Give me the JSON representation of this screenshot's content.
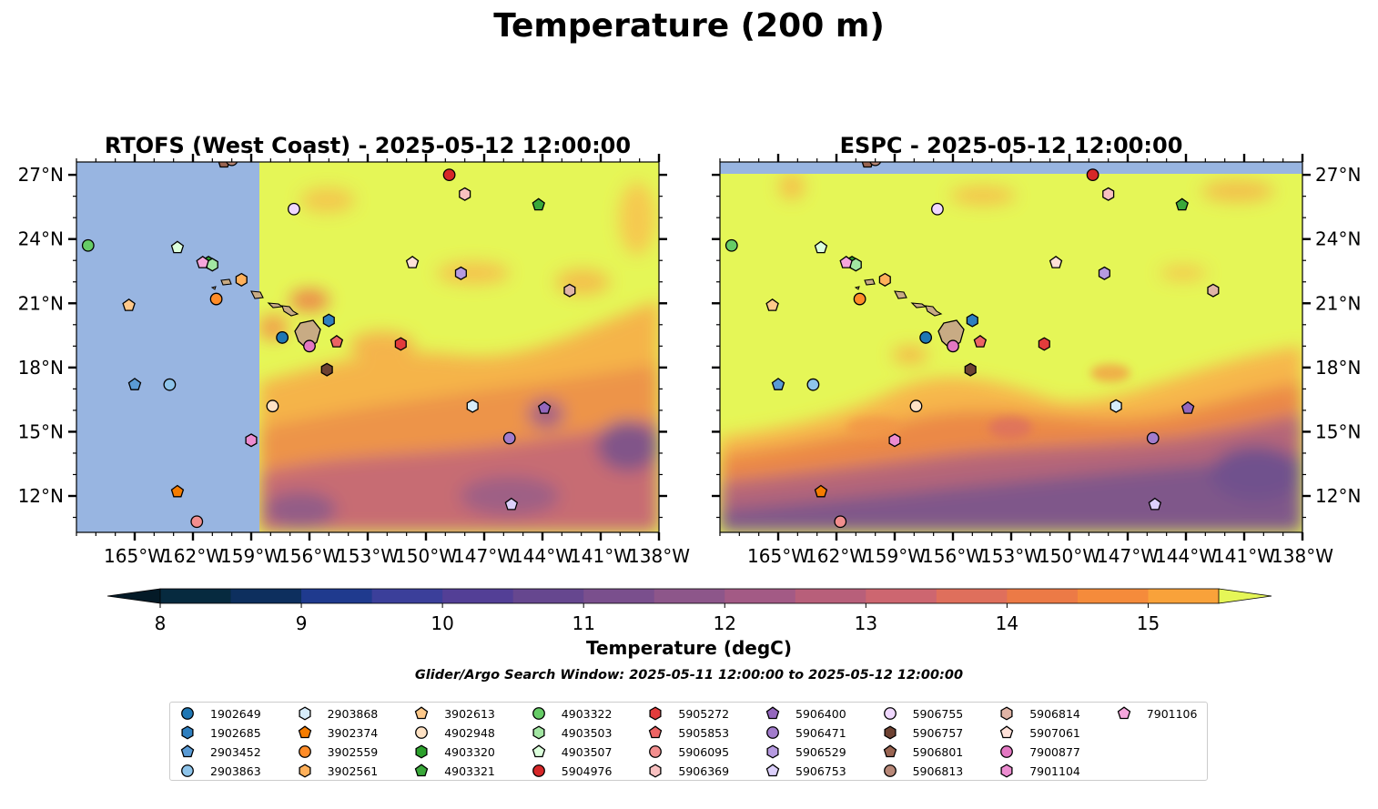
{
  "figure": {
    "title": "Temperature (200 m)"
  },
  "panels": [
    {
      "title": "RTOFS (West Coast) - 2025-05-12 12:00:00"
    },
    {
      "title": "ESPC - 2025-05-12 12:00:00"
    }
  ],
  "map": {
    "lon_range": [
      -168,
      -138
    ],
    "lat_range": [
      10.3,
      27.6
    ],
    "lon_ticks": [
      {
        "value": -165,
        "label": "165°W"
      },
      {
        "value": -162,
        "label": "162°W"
      },
      {
        "value": -159,
        "label": "159°W"
      },
      {
        "value": -156,
        "label": "156°W"
      },
      {
        "value": -153,
        "label": "153°W"
      },
      {
        "value": -150,
        "label": "150°W"
      },
      {
        "value": -147,
        "label": "147°W"
      },
      {
        "value": -144,
        "label": "144°W"
      },
      {
        "value": -141,
        "label": "141°W"
      },
      {
        "value": -138,
        "label": "138°W"
      }
    ],
    "lat_ticks": [
      {
        "value": 27,
        "label": "27°N"
      },
      {
        "value": 24,
        "label": "24°N"
      },
      {
        "value": 21,
        "label": "21°N"
      },
      {
        "value": 18,
        "label": "18°N"
      },
      {
        "value": 15,
        "label": "15°N"
      },
      {
        "value": 12,
        "label": "12°N"
      }
    ],
    "colors": {
      "no_data": "#98b5e1",
      "warm": "#e5f657",
      "land": "#c8ab84"
    }
  },
  "colorbar": {
    "label": "Temperature (degC)",
    "min": 8,
    "max": 15.5,
    "step": 0.5,
    "ticks": [
      {
        "value": 8,
        "label": "8"
      },
      {
        "value": 9,
        "label": "9"
      },
      {
        "value": 10,
        "label": "10"
      },
      {
        "value": 11,
        "label": "11"
      },
      {
        "value": 12,
        "label": "12"
      },
      {
        "value": 13,
        "label": "13"
      },
      {
        "value": 14,
        "label": "14"
      },
      {
        "value": 15,
        "label": "15"
      }
    ],
    "colors": [
      "#062a3f",
      "#0d2f5e",
      "#1f3a8e",
      "#3b3f9a",
      "#533f96",
      "#66478f",
      "#7a4f8d",
      "#8d568a",
      "#a35a85",
      "#b85f7a",
      "#cd6670",
      "#df6f5c",
      "#ec7a46",
      "#f58b3b",
      "#f9a23a",
      "#f8be45",
      "#f2d752"
    ],
    "under_color": "#041a27",
    "over_color": "#e5f657"
  },
  "caption": "Glider/Argo Search Window: 2025-05-11 12:00:00 to 2025-05-12 12:00:00",
  "legend": [
    {
      "id": "1902649",
      "marker": "circle",
      "color": "#1f77b4",
      "lon": -157.4,
      "lat": 19.4
    },
    {
      "id": "1902685",
      "marker": "hexagon",
      "color": "#2e7fbf",
      "lon": -155.0,
      "lat": 20.2
    },
    {
      "id": "2903452",
      "marker": "pentagon",
      "color": "#5a9bd5",
      "lon": -165.0,
      "lat": 17.2
    },
    {
      "id": "2903863",
      "marker": "circle",
      "color": "#8ec4ea",
      "lon": -163.2,
      "lat": 17.2
    },
    {
      "id": "2903868",
      "marker": "hexagon",
      "color": "#d6ecfa",
      "lon": -147.6,
      "lat": 16.2
    },
    {
      "id": "3902374",
      "marker": "pentagon",
      "color": "#f57c00",
      "lon": -162.8,
      "lat": 12.2
    },
    {
      "id": "3902559",
      "marker": "circle",
      "color": "#ff8c28",
      "lon": -160.8,
      "lat": 21.2
    },
    {
      "id": "3902561",
      "marker": "hexagon",
      "color": "#ffb05a",
      "lon": -159.5,
      "lat": 22.1
    },
    {
      "id": "3902613",
      "marker": "pentagon",
      "color": "#ffc98a",
      "lon": -165.3,
      "lat": 20.9
    },
    {
      "id": "4902948",
      "marker": "circle",
      "color": "#ffe2c4",
      "lon": -157.9,
      "lat": 16.2
    },
    {
      "id": "4903320",
      "marker": "hexagon",
      "color": "#2ca02c",
      "lon": -161.2,
      "lat": 22.9
    },
    {
      "id": "4903321",
      "marker": "pentagon",
      "color": "#3aa83a",
      "lon": -144.2,
      "lat": 25.6
    },
    {
      "id": "4903322",
      "marker": "circle",
      "color": "#66cc66",
      "lon": -167.4,
      "lat": 23.7
    },
    {
      "id": "4903503",
      "marker": "hexagon",
      "color": "#a2e6a2",
      "lon": -161.0,
      "lat": 22.8
    },
    {
      "id": "4903507",
      "marker": "pentagon",
      "color": "#dcffdc",
      "lon": -162.8,
      "lat": 23.6
    },
    {
      "id": "5904976",
      "marker": "circle",
      "color": "#d62728",
      "lon": -148.8,
      "lat": 27.0
    },
    {
      "id": "5905272",
      "marker": "hexagon",
      "color": "#e23c3c",
      "lon": -151.3,
      "lat": 19.1
    },
    {
      "id": "5905853",
      "marker": "pentagon",
      "color": "#ec6464",
      "lon": -154.6,
      "lat": 19.2
    },
    {
      "id": "5906095",
      "marker": "circle",
      "color": "#f28e8e",
      "lon": -161.8,
      "lat": 10.8
    },
    {
      "id": "5906369",
      "marker": "hexagon",
      "color": "#f8c0c0",
      "lon": -148.0,
      "lat": 26.1
    },
    {
      "id": "5906400",
      "marker": "pentagon",
      "color": "#9467bd",
      "lon": -143.9,
      "lat": 16.1
    },
    {
      "id": "5906471",
      "marker": "circle",
      "color": "#a27ccc",
      "lon": -145.7,
      "lat": 14.7
    },
    {
      "id": "5906529",
      "marker": "hexagon",
      "color": "#b69ae0",
      "lon": -148.2,
      "lat": 22.4
    },
    {
      "id": "5906753",
      "marker": "pentagon",
      "color": "#dcd0fb",
      "lon": -145.6,
      "lat": 11.6
    },
    {
      "id": "5906755",
      "marker": "circle",
      "color": "#f0d8ff",
      "lon": -156.8,
      "lat": 25.4
    },
    {
      "id": "5906757",
      "marker": "hexagon",
      "color": "#6e4232",
      "lon": -155.1,
      "lat": 17.9
    },
    {
      "id": "5906801",
      "marker": "pentagon",
      "color": "#9a6552",
      "lon": -160.4,
      "lat": 27.6
    },
    {
      "id": "5906813",
      "marker": "circle",
      "color": "#b88878",
      "lon": -160.0,
      "lat": 27.7
    },
    {
      "id": "5906814",
      "marker": "hexagon",
      "color": "#e0b4a6",
      "lon": -142.6,
      "lat": 21.6
    },
    {
      "id": "5907061",
      "marker": "pentagon",
      "color": "#ffe0d8",
      "lon": -150.7,
      "lat": 22.9
    },
    {
      "id": "7900877",
      "marker": "circle",
      "color": "#e377c2",
      "lon": -156.0,
      "lat": 19.0
    },
    {
      "id": "7901104",
      "marker": "hexagon",
      "color": "#ec8cd0",
      "lon": -159.0,
      "lat": 14.6
    },
    {
      "id": "7901106",
      "marker": "pentagon",
      "color": "#f5a6dc",
      "lon": -161.5,
      "lat": 22.9
    }
  ]
}
